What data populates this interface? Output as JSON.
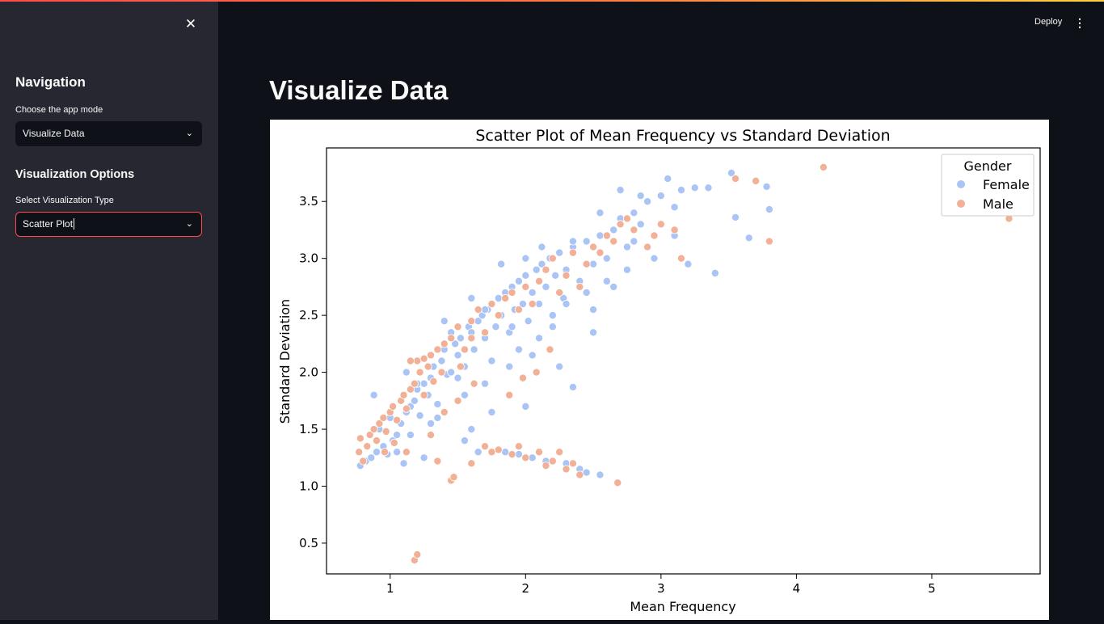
{
  "sidebar": {
    "nav_title": "Navigation",
    "mode_label": "Choose the app mode",
    "mode_value": "Visualize Data",
    "options_title": "Visualization Options",
    "viz_label": "Select Visualization Type",
    "viz_value": "Scatter Plot"
  },
  "header": {
    "deploy_label": "Deploy"
  },
  "main": {
    "title": "Visualize Data"
  },
  "colors": {
    "female": "#aac4f5",
    "male": "#f2b196",
    "accent": "#ff4b4b"
  },
  "icons": {
    "close": "close-icon",
    "chevron": "chevron-down-icon",
    "menu": "kebab-menu-icon"
  },
  "chart_data": {
    "type": "scatter",
    "title": "Scatter Plot of Mean Frequency vs Standard Deviation",
    "xlabel": "Mean Frequency",
    "ylabel": "Standard Deviation",
    "xlim": [
      0.53,
      5.8
    ],
    "ylim": [
      0.23,
      3.97
    ],
    "xticks": [
      1,
      2,
      3,
      4,
      5
    ],
    "yticks": [
      0.5,
      1.0,
      1.5,
      2.0,
      2.5,
      3.0,
      3.5
    ],
    "grid": false,
    "legend": {
      "title": "Gender",
      "placement": "top-right",
      "entries": [
        "Female",
        "Male"
      ]
    },
    "series": [
      {
        "name": "Female",
        "color": "#aac4f5",
        "points": [
          [
            0.78,
            1.18
          ],
          [
            0.82,
            1.22
          ],
          [
            0.86,
            1.25
          ],
          [
            0.9,
            1.3
          ],
          [
            0.95,
            1.35
          ],
          [
            0.98,
            1.28
          ],
          [
            1.02,
            1.4
          ],
          [
            1.05,
            1.45
          ],
          [
            1.08,
            1.55
          ],
          [
            1.1,
            1.2
          ],
          [
            1.12,
            1.65
          ],
          [
            1.15,
            1.7
          ],
          [
            1.18,
            1.75
          ],
          [
            1.2,
            1.85
          ],
          [
            1.22,
            1.62
          ],
          [
            1.25,
            1.9
          ],
          [
            1.28,
            1.8
          ],
          [
            1.3,
            1.95
          ],
          [
            1.32,
            2.05
          ],
          [
            1.35,
            1.72
          ],
          [
            1.38,
            2.1
          ],
          [
            1.4,
            2.2
          ],
          [
            1.42,
            1.98
          ],
          [
            1.45,
            2.0
          ],
          [
            1.48,
            2.25
          ],
          [
            1.5,
            2.15
          ],
          [
            1.52,
            2.3
          ],
          [
            1.55,
            2.05
          ],
          [
            1.58,
            2.4
          ],
          [
            1.6,
            2.35
          ],
          [
            1.62,
            2.2
          ],
          [
            1.65,
            2.45
          ],
          [
            1.68,
            2.5
          ],
          [
            1.7,
            2.3
          ],
          [
            1.72,
            2.55
          ],
          [
            1.75,
            2.6
          ],
          [
            1.78,
            2.4
          ],
          [
            1.8,
            2.65
          ],
          [
            1.82,
            2.5
          ],
          [
            1.85,
            2.7
          ],
          [
            1.88,
            2.35
          ],
          [
            1.9,
            2.75
          ],
          [
            1.92,
            2.55
          ],
          [
            1.95,
            2.8
          ],
          [
            1.98,
            2.6
          ],
          [
            2.0,
            2.85
          ],
          [
            2.02,
            2.45
          ],
          [
            2.05,
            2.7
          ],
          [
            2.08,
            2.9
          ],
          [
            2.1,
            2.6
          ],
          [
            2.12,
            2.95
          ],
          [
            2.15,
            2.75
          ],
          [
            2.18,
            3.0
          ],
          [
            2.2,
            2.5
          ],
          [
            2.22,
            2.85
          ],
          [
            2.25,
            3.05
          ],
          [
            2.28,
            2.65
          ],
          [
            2.3,
            2.9
          ],
          [
            2.35,
            3.1
          ],
          [
            2.4,
            2.8
          ],
          [
            2.45,
            3.15
          ],
          [
            2.5,
            2.95
          ],
          [
            2.55,
            3.2
          ],
          [
            2.6,
            3.0
          ],
          [
            2.65,
            3.25
          ],
          [
            2.7,
            3.35
          ],
          [
            2.75,
            3.1
          ],
          [
            2.8,
            3.4
          ],
          [
            2.85,
            3.3
          ],
          [
            2.9,
            3.5
          ],
          [
            2.95,
            3.2
          ],
          [
            3.0,
            3.55
          ],
          [
            3.05,
            3.7
          ],
          [
            3.1,
            3.45
          ],
          [
            3.15,
            3.6
          ],
          [
            3.2,
            2.95
          ],
          [
            3.25,
            3.62
          ],
          [
            3.35,
            3.62
          ],
          [
            3.4,
            2.87
          ],
          [
            3.55,
            3.36
          ],
          [
            3.52,
            3.75
          ],
          [
            3.65,
            3.18
          ],
          [
            3.78,
            3.63
          ],
          [
            3.8,
            3.43
          ],
          [
            2.35,
            1.87
          ],
          [
            2.5,
            2.35
          ],
          [
            1.6,
            1.5
          ],
          [
            1.75,
            1.65
          ],
          [
            2.0,
            1.7
          ],
          [
            2.25,
            2.05
          ],
          [
            1.65,
            1.3
          ],
          [
            1.85,
            1.3
          ],
          [
            2.05,
            1.25
          ],
          [
            2.3,
            1.2
          ],
          [
            2.4,
            1.15
          ],
          [
            2.55,
            1.1
          ],
          [
            2.45,
            1.12
          ],
          [
            2.15,
            1.22
          ],
          [
            1.95,
            1.28
          ],
          [
            1.55,
            1.4
          ],
          [
            1.3,
            1.55
          ],
          [
            1.15,
            1.45
          ],
          [
            1.25,
            1.25
          ],
          [
            0.92,
            1.5
          ],
          [
            1.0,
            1.6
          ],
          [
            1.2,
            1.9
          ],
          [
            1.45,
            2.35
          ],
          [
            1.7,
            2.55
          ],
          [
            1.9,
            2.4
          ],
          [
            2.1,
            2.3
          ],
          [
            2.3,
            2.6
          ],
          [
            2.45,
            2.7
          ],
          [
            2.6,
            2.8
          ],
          [
            2.75,
            2.9
          ],
          [
            2.95,
            3.0
          ],
          [
            3.1,
            3.2
          ],
          [
            2.85,
            3.55
          ],
          [
            2.7,
            3.6
          ],
          [
            2.55,
            3.4
          ],
          [
            2.35,
            3.15
          ],
          [
            1.6,
            2.65
          ],
          [
            1.4,
            2.45
          ],
          [
            1.82,
            2.95
          ],
          [
            2.0,
            3.0
          ],
          [
            2.12,
            3.1
          ],
          [
            1.35,
            1.6
          ],
          [
            1.55,
            1.8
          ],
          [
            1.75,
            2.1
          ],
          [
            1.95,
            2.2
          ],
          [
            2.2,
            2.4
          ],
          [
            2.5,
            2.55
          ],
          [
            2.65,
            2.75
          ],
          [
            2.8,
            3.15
          ],
          [
            1.05,
            1.3
          ],
          [
            0.88,
            1.8
          ],
          [
            1.12,
            2.0
          ],
          [
            1.5,
            1.95
          ],
          [
            1.7,
            1.9
          ],
          [
            1.88,
            2.05
          ],
          [
            2.05,
            2.15
          ]
        ]
      },
      {
        "name": "Male",
        "color": "#f2b196",
        "points": [
          [
            0.77,
            1.3
          ],
          [
            0.78,
            1.42
          ],
          [
            0.8,
            1.22
          ],
          [
            0.83,
            1.35
          ],
          [
            0.85,
            1.45
          ],
          [
            0.88,
            1.5
          ],
          [
            0.9,
            1.4
          ],
          [
            0.92,
            1.55
          ],
          [
            0.95,
            1.6
          ],
          [
            0.97,
            1.48
          ],
          [
            1.0,
            1.65
          ],
          [
            1.02,
            1.7
          ],
          [
            1.05,
            1.58
          ],
          [
            1.08,
            1.75
          ],
          [
            1.1,
            1.8
          ],
          [
            1.12,
            1.68
          ],
          [
            1.15,
            1.85
          ],
          [
            1.18,
            1.9
          ],
          [
            1.2,
            2.1
          ],
          [
            1.22,
            2.0
          ],
          [
            1.25,
            1.8
          ],
          [
            1.28,
            2.05
          ],
          [
            1.3,
            2.15
          ],
          [
            1.32,
            1.92
          ],
          [
            1.35,
            2.2
          ],
          [
            1.38,
            2.0
          ],
          [
            1.4,
            2.25
          ],
          [
            1.45,
            2.3
          ],
          [
            1.5,
            2.4
          ],
          [
            1.55,
            2.2
          ],
          [
            1.6,
            2.45
          ],
          [
            1.65,
            2.55
          ],
          [
            1.7,
            2.35
          ],
          [
            1.75,
            2.6
          ],
          [
            1.8,
            2.5
          ],
          [
            1.85,
            2.65
          ],
          [
            1.9,
            2.7
          ],
          [
            1.95,
            2.55
          ],
          [
            2.0,
            2.75
          ],
          [
            2.05,
            2.6
          ],
          [
            2.1,
            2.8
          ],
          [
            2.15,
            2.9
          ],
          [
            2.2,
            3.0
          ],
          [
            2.25,
            2.7
          ],
          [
            2.3,
            2.85
          ],
          [
            2.35,
            3.05
          ],
          [
            2.4,
            2.75
          ],
          [
            2.5,
            3.1
          ],
          [
            2.6,
            3.2
          ],
          [
            2.7,
            3.3
          ],
          [
            2.75,
            3.35
          ],
          [
            2.9,
            3.1
          ],
          [
            3.0,
            3.3
          ],
          [
            3.1,
            3.25
          ],
          [
            3.15,
            3.0
          ],
          [
            3.55,
            3.7
          ],
          [
            3.7,
            3.68
          ],
          [
            3.8,
            3.15
          ],
          [
            4.2,
            3.8
          ],
          [
            5.57,
            3.35
          ],
          [
            1.18,
            0.35
          ],
          [
            1.2,
            0.4
          ],
          [
            1.35,
            1.22
          ],
          [
            1.45,
            1.05
          ],
          [
            1.47,
            1.08
          ],
          [
            1.6,
            1.2
          ],
          [
            1.7,
            1.35
          ],
          [
            1.8,
            1.32
          ],
          [
            1.9,
            1.28
          ],
          [
            2.0,
            1.25
          ],
          [
            2.1,
            1.3
          ],
          [
            2.2,
            1.22
          ],
          [
            2.3,
            1.15
          ],
          [
            2.4,
            1.1
          ],
          [
            2.68,
            1.03
          ],
          [
            2.25,
            1.3
          ],
          [
            1.95,
            1.35
          ],
          [
            1.75,
            1.3
          ],
          [
            2.15,
            1.18
          ],
          [
            2.35,
            1.2
          ],
          [
            1.88,
            1.8
          ],
          [
            1.98,
            1.95
          ],
          [
            2.08,
            2.0
          ],
          [
            2.18,
            2.2
          ],
          [
            1.3,
            1.45
          ],
          [
            1.12,
            1.3
          ],
          [
            0.96,
            1.3
          ],
          [
            1.03,
            1.38
          ],
          [
            1.5,
            1.75
          ],
          [
            1.62,
            1.9
          ],
          [
            1.52,
            2.05
          ],
          [
            1.4,
            1.65
          ],
          [
            1.6,
            2.3
          ],
          [
            2.45,
            2.95
          ],
          [
            2.55,
            3.05
          ],
          [
            2.65,
            3.15
          ],
          [
            2.8,
            3.25
          ],
          [
            2.95,
            3.2
          ],
          [
            1.25,
            2.12
          ],
          [
            1.15,
            2.1
          ]
        ]
      }
    ]
  }
}
